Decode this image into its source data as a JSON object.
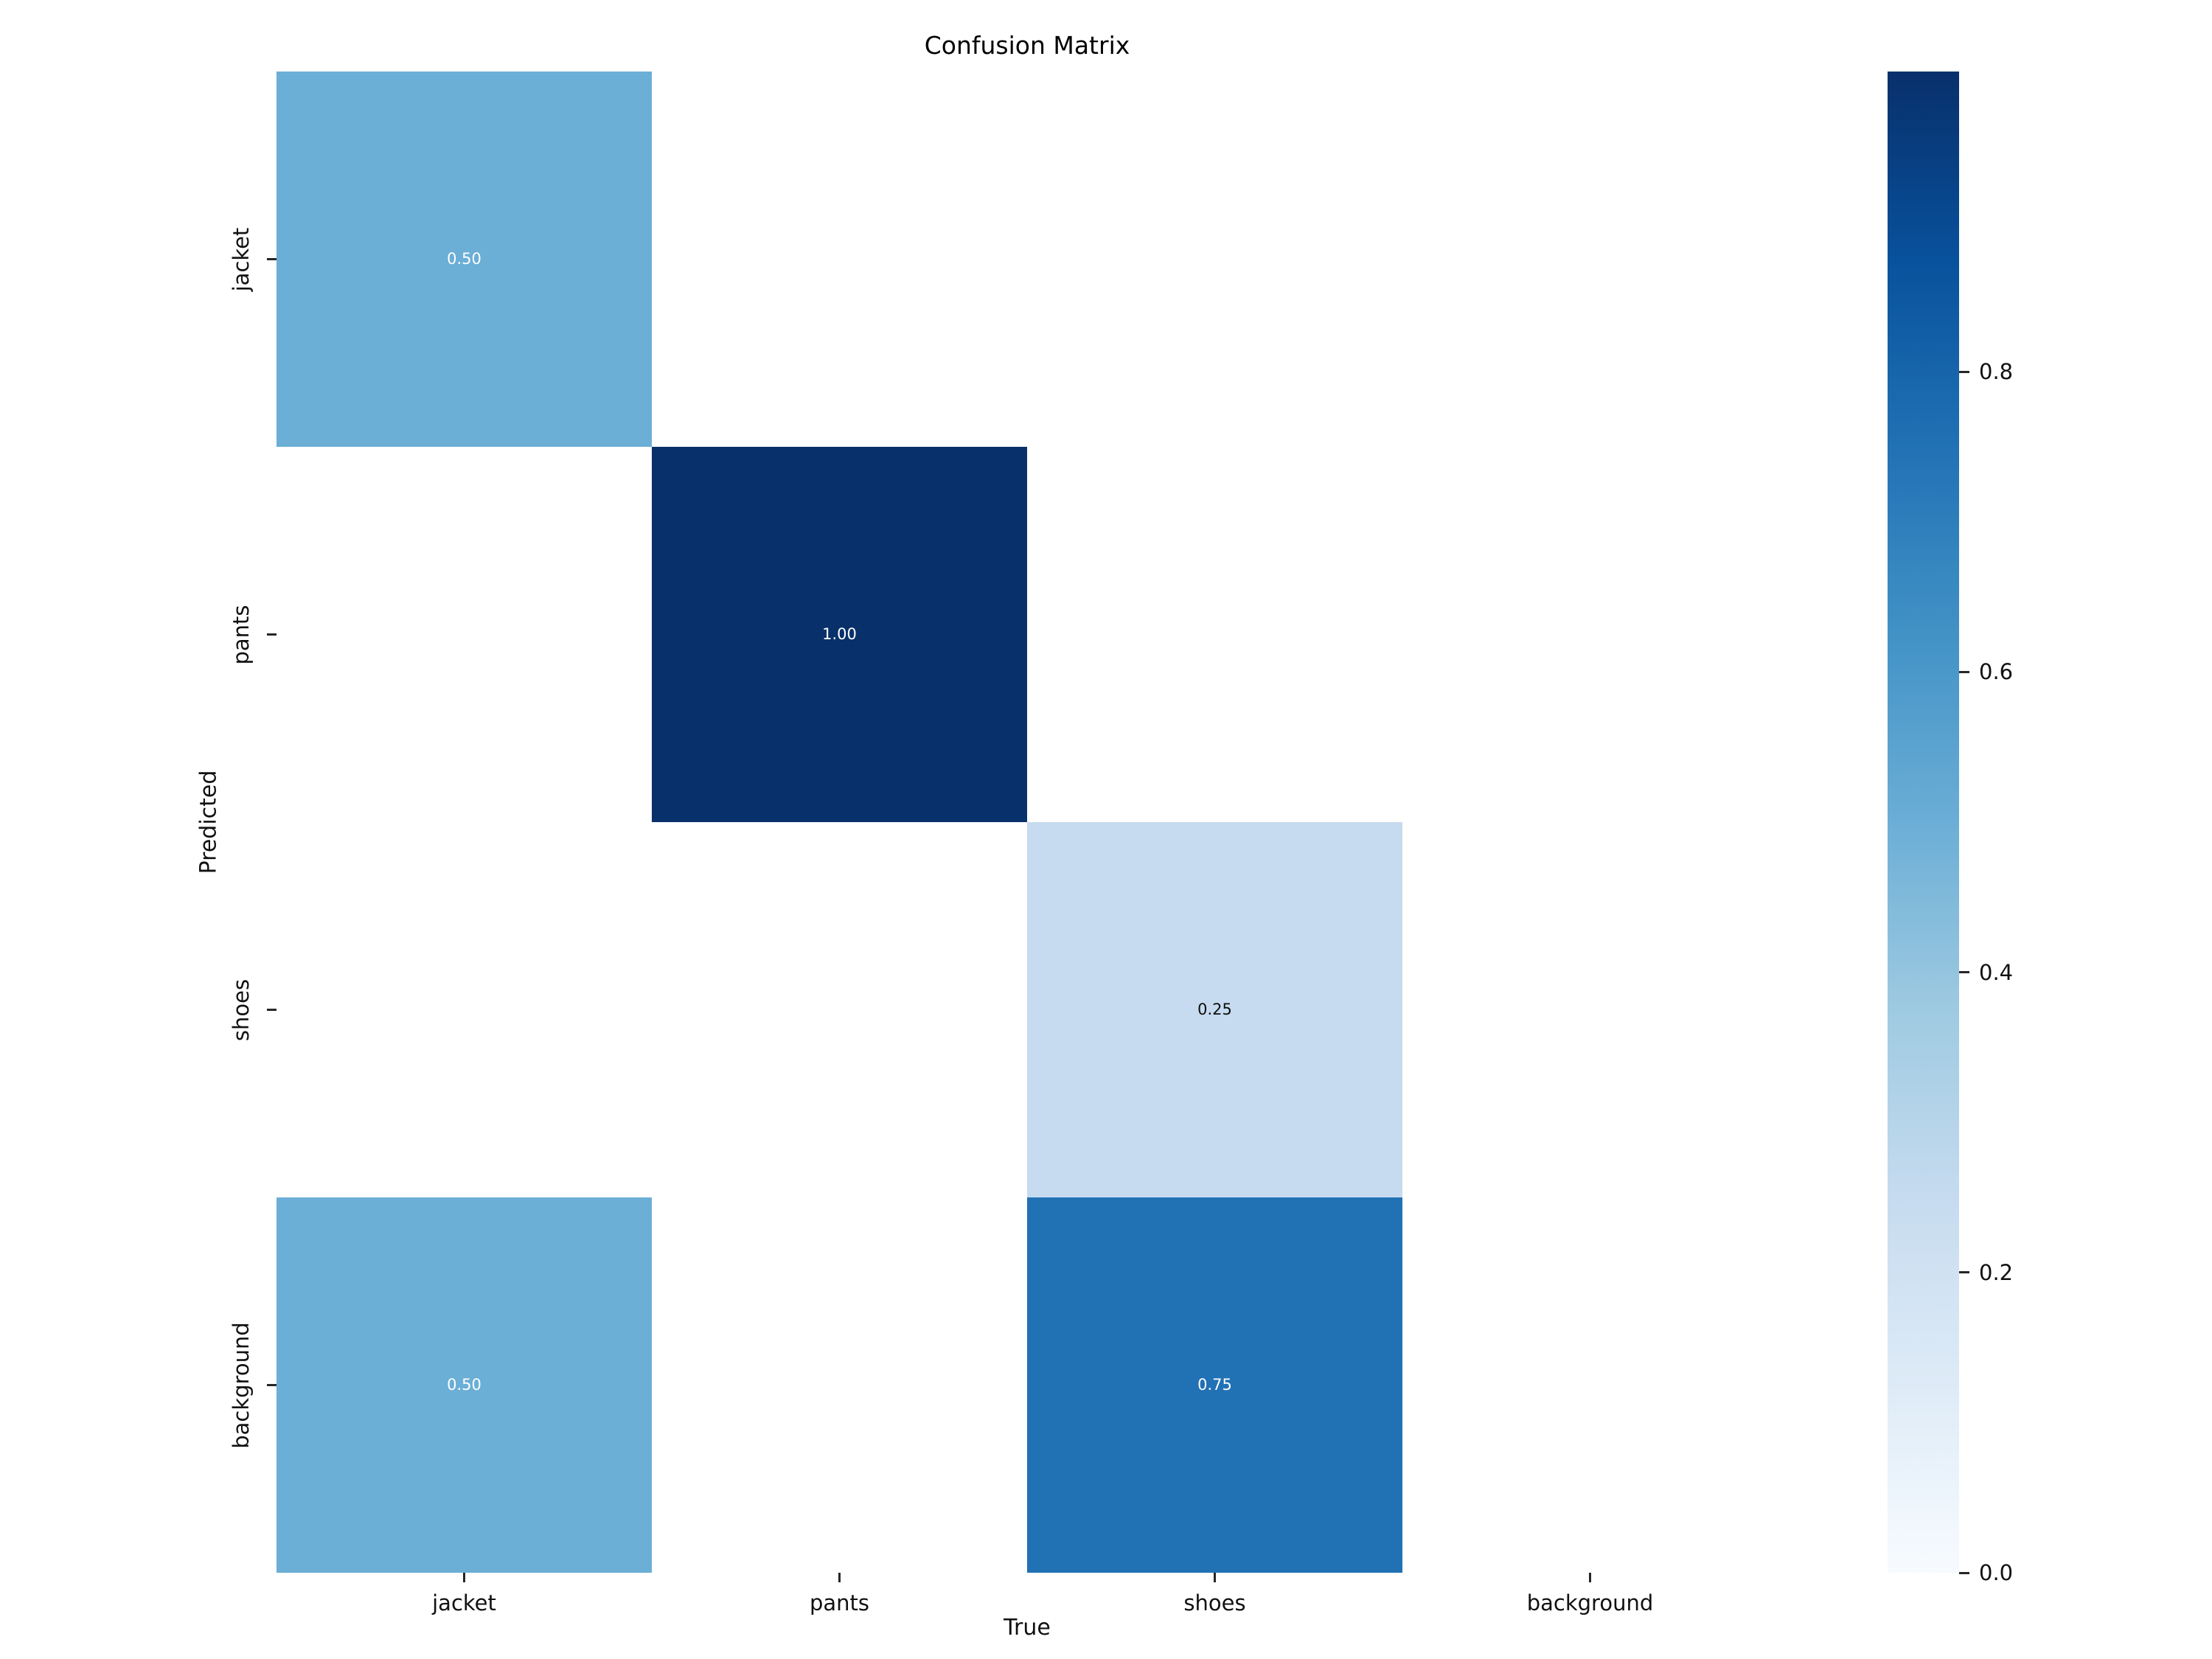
{
  "figure": {
    "background": "#ffffff"
  },
  "chart_data": {
    "type": "heatmap",
    "title": "Confusion Matrix",
    "xlabel": "True",
    "ylabel": "Predicted",
    "x_categories": [
      "jacket",
      "pants",
      "shoes",
      "background"
    ],
    "y_categories": [
      "jacket",
      "pants",
      "shoes",
      "background"
    ],
    "matrix": [
      [
        0.5,
        0,
        0,
        0
      ],
      [
        0,
        1.0,
        0,
        0
      ],
      [
        0,
        0,
        0.25,
        0
      ],
      [
        0.5,
        0,
        0.75,
        0
      ]
    ],
    "cell_labels": [
      [
        "0.50",
        "",
        "",
        ""
      ],
      [
        "",
        "1.00",
        "",
        ""
      ],
      [
        "",
        "",
        "0.25",
        ""
      ],
      [
        "0.50",
        "",
        "0.75",
        ""
      ]
    ],
    "value_range": [
      0.0,
      1.0
    ],
    "colormap": "Blues",
    "colormap_stops": [
      {
        "t": 0.0,
        "color": "#f7fbff"
      },
      {
        "t": 0.125,
        "color": "#deebf7"
      },
      {
        "t": 0.25,
        "color": "#c6dbef"
      },
      {
        "t": 0.375,
        "color": "#9ecae1"
      },
      {
        "t": 0.5,
        "color": "#6baed6"
      },
      {
        "t": 0.625,
        "color": "#4292c6"
      },
      {
        "t": 0.75,
        "color": "#2171b5"
      },
      {
        "t": 0.875,
        "color": "#08519c"
      },
      {
        "t": 1.0,
        "color": "#08306b"
      }
    ],
    "colorbar": {
      "position": "right",
      "ticks": [
        {
          "value": 0.8,
          "label": "0.8"
        },
        {
          "value": 0.6,
          "label": "0.6"
        },
        {
          "value": 0.4,
          "label": "0.4"
        },
        {
          "value": 0.2,
          "label": "0.2"
        },
        {
          "value": 0.0,
          "label": "0.0"
        }
      ]
    },
    "grid": false,
    "legend_position": "colorbar-right"
  },
  "text_colors": {
    "light": "#ffffff",
    "dark": "#0d0d0d"
  }
}
